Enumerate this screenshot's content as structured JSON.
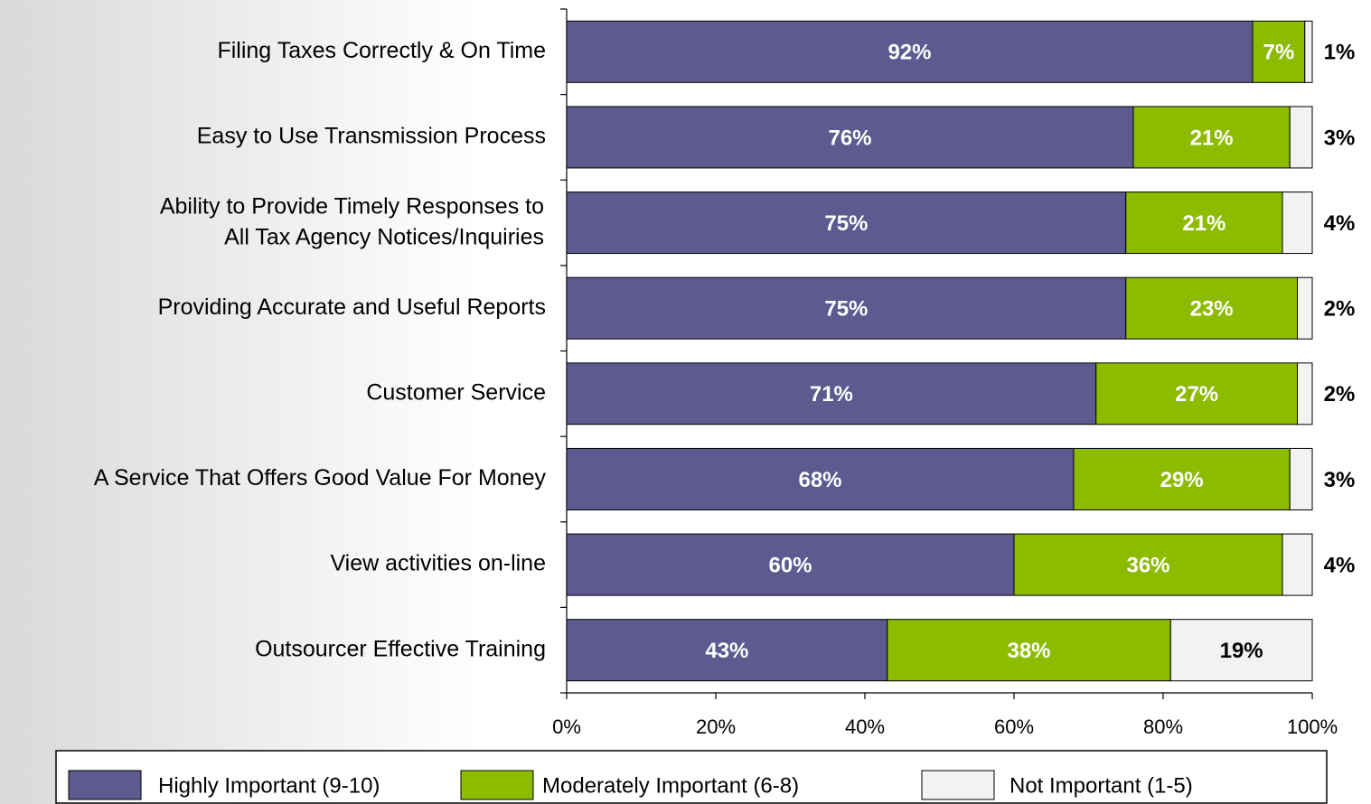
{
  "chart_data": {
    "type": "stacked-bar-horizontal",
    "categories": [
      "Filing Taxes Correctly & On Time",
      "Easy to Use Transmission Process",
      "Ability to Provide Timely Responses to\nAll Tax Agency Notices/Inquiries",
      "Providing Accurate and Useful Reports",
      "Customer Service",
      "A Service That Offers Good Value For Money",
      "View activities on-line",
      "Outsourcer Effective Training"
    ],
    "series": [
      {
        "name": "Highly Important (9-10)",
        "color": "#5c5a8e",
        "label_color": "#ffffff",
        "values": [
          92,
          76,
          75,
          75,
          71,
          68,
          60,
          43
        ],
        "value_labels": [
          "92%",
          "76%",
          "75%",
          "75%",
          "71%",
          "68%",
          "60%",
          "43%"
        ]
      },
      {
        "name": "Moderately Important (6-8)",
        "color": "#8cbb00",
        "label_color": "#ffffff",
        "values": [
          7,
          21,
          21,
          23,
          27,
          29,
          36,
          38
        ],
        "value_labels": [
          "7%",
          "21%",
          "21%",
          "23%",
          "27%",
          "29%",
          "36%",
          "38%"
        ]
      },
      {
        "name": "Not Important (1-5)",
        "color": "#f2f2f2",
        "label_color": "#000000",
        "values": [
          1,
          3,
          4,
          2,
          2,
          3,
          4,
          19
        ],
        "value_labels": [
          "1%",
          "3%",
          "4%",
          "2%",
          "2%",
          "3%",
          "4%",
          "19%"
        ]
      }
    ],
    "xlim": [
      0,
      100
    ],
    "xticks": [
      {
        "value": 0,
        "label": "0%"
      },
      {
        "value": 20,
        "label": "20%"
      },
      {
        "value": 40,
        "label": "40%"
      },
      {
        "value": 60,
        "label": "60%"
      },
      {
        "value": 80,
        "label": "80%"
      },
      {
        "value": 100,
        "label": "100%"
      }
    ],
    "legend": "bottom"
  }
}
